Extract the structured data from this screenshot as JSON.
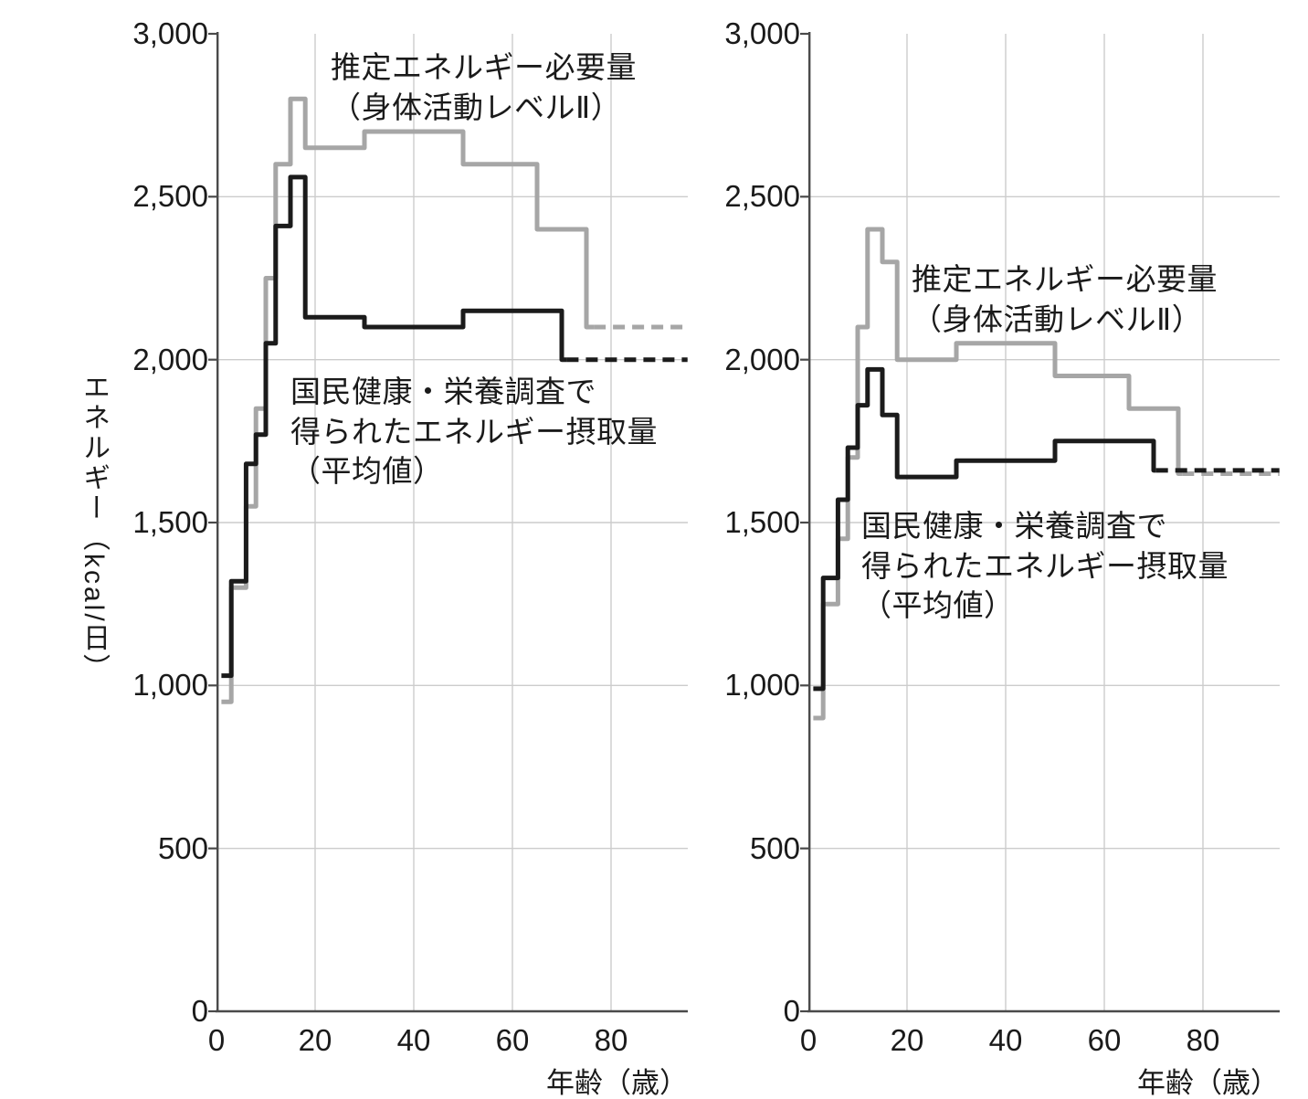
{
  "colors": {
    "eer_line": "#a6a6a6",
    "intake_line": "#1b1b1b",
    "grid": "#cccccc",
    "axis": "#4a4a4a",
    "text": "#1a1a1a",
    "background": "#ffffff"
  },
  "chart_data": [
    {
      "panel": "left",
      "type": "line",
      "line_shape": "step",
      "x_axis": {
        "title": "年齢（歳）",
        "ticks": [
          0,
          20,
          40,
          60,
          80
        ],
        "tick_labels": [
          "0",
          "20",
          "40",
          "60",
          "80"
        ],
        "range": [
          0,
          95.5
        ]
      },
      "y_axis": {
        "title": "エネルギー（kcal/日）",
        "ticks": [
          3000,
          2500,
          2000,
          1500,
          1000,
          500,
          0
        ],
        "tick_labels": [
          "3,000",
          "2,500",
          "2,000",
          "1,500",
          "1,000",
          "500",
          "0"
        ],
        "range": [
          0,
          3000
        ],
        "grid_values": [
          500,
          1000,
          1500,
          2000,
          2500
        ]
      },
      "series": [
        {
          "id": "eer",
          "label": "推定エネルギー必要量\n（身体活動レベルⅡ）",
          "color_key": "eer_line",
          "style": "solid_then_dashed",
          "dash_from": 76.5,
          "end_age": 95.5,
          "steps": [
            [
              1,
              950
            ],
            [
              3,
              1300
            ],
            [
              6,
              1550
            ],
            [
              8,
              1850
            ],
            [
              10,
              2250
            ],
            [
              12,
              2600
            ],
            [
              15,
              2800
            ],
            [
              18,
              2650
            ],
            [
              30,
              2700
            ],
            [
              50,
              2600
            ],
            [
              65,
              2400
            ],
            [
              75,
              2100
            ]
          ]
        },
        {
          "id": "intake",
          "label": "国民健康・栄養調査で\n得られたエネルギー摂取量\n（平均値）",
          "color_key": "intake_line",
          "style": "solid_then_dashed",
          "dash_from": 71,
          "end_age": 95.5,
          "steps": [
            [
              1,
              1030
            ],
            [
              3,
              1320
            ],
            [
              6,
              1680
            ],
            [
              8,
              1770
            ],
            [
              10,
              2050
            ],
            [
              12,
              2410
            ],
            [
              15,
              2560
            ],
            [
              18,
              2130
            ],
            [
              30,
              2100
            ],
            [
              50,
              2150
            ],
            [
              70,
              2000
            ]
          ]
        }
      ]
    },
    {
      "panel": "right",
      "type": "line",
      "line_shape": "step",
      "x_axis": {
        "title": "年齢（歳）",
        "ticks": [
          0,
          20,
          40,
          60,
          80
        ],
        "tick_labels": [
          "0",
          "20",
          "40",
          "60",
          "80"
        ],
        "range": [
          0,
          95.5
        ]
      },
      "y_axis": {
        "title": "エネルギー（kcal/日）",
        "ticks": [
          3000,
          2500,
          2000,
          1500,
          1000,
          500,
          0
        ],
        "tick_labels": [
          "3,000",
          "2,500",
          "2,000",
          "1,500",
          "1,000",
          "500",
          "0"
        ],
        "range": [
          0,
          3000
        ],
        "grid_values": [
          500,
          1000,
          1500,
          2000,
          2500
        ]
      },
      "series": [
        {
          "id": "eer",
          "label": "推定エネルギー必要量\n（身体活動レベルⅡ）",
          "color_key": "eer_line",
          "style": "solid_then_dashed",
          "dash_from": 75.8,
          "end_age": 95.5,
          "steps": [
            [
              1,
              900
            ],
            [
              3,
              1250
            ],
            [
              6,
              1450
            ],
            [
              8,
              1700
            ],
            [
              10,
              2100
            ],
            [
              12,
              2400
            ],
            [
              15,
              2300
            ],
            [
              18,
              2000
            ],
            [
              30,
              2050
            ],
            [
              50,
              1950
            ],
            [
              65,
              1850
            ],
            [
              75,
              1650
            ]
          ]
        },
        {
          "id": "intake",
          "label": "国民健康・栄養調査で\n得られたエネルギー摂取量\n（平均値）",
          "color_key": "intake_line",
          "style": "solid_then_dashed",
          "dash_from": 70.5,
          "end_age": 95.5,
          "steps": [
            [
              1,
              990
            ],
            [
              3,
              1330
            ],
            [
              6,
              1570
            ],
            [
              8,
              1730
            ],
            [
              10,
              1860
            ],
            [
              12,
              1970
            ],
            [
              15,
              1830
            ],
            [
              18,
              1640
            ],
            [
              30,
              1690
            ],
            [
              50,
              1750
            ],
            [
              70,
              1660
            ]
          ]
        }
      ]
    }
  ]
}
